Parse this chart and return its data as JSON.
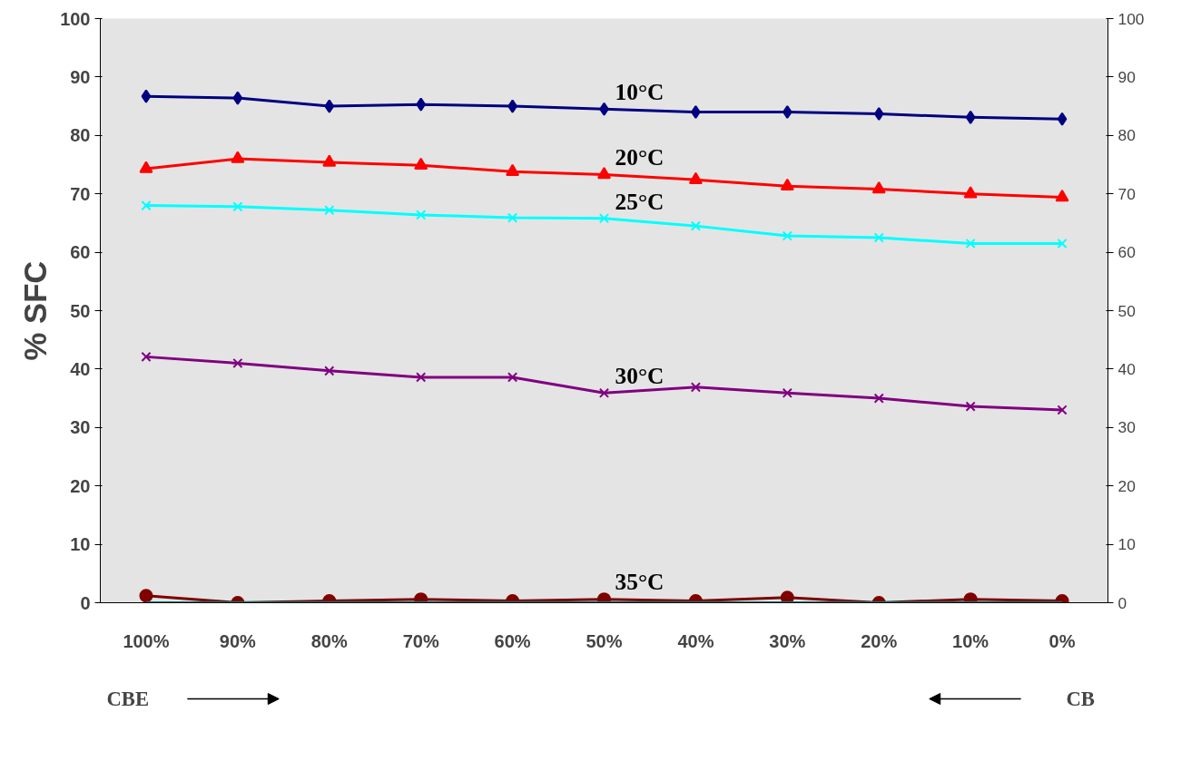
{
  "chart_data": {
    "type": "line",
    "ylabel": "% SFC",
    "categories": [
      "100%",
      "90%",
      "80%",
      "70%",
      "60%",
      "50%",
      "40%",
      "30%",
      "20%",
      "10%",
      "0%"
    ],
    "series": [
      {
        "name": "10°C",
        "color": "#000080",
        "marker": "diamond",
        "values": [
          86.7,
          86.4,
          85,
          85.3,
          85,
          84.5,
          84,
          84,
          83.7,
          83.1,
          82.8
        ]
      },
      {
        "name": "20°C",
        "color": "#ff0000",
        "marker": "triangle",
        "values": [
          74.3,
          76,
          75.4,
          74.9,
          73.8,
          73.3,
          72.4,
          71.3,
          70.8,
          70,
          69.4
        ]
      },
      {
        "name": "25°C",
        "color": "#00ffff",
        "marker": "cross",
        "values": [
          68,
          67.8,
          67.2,
          66.4,
          65.9,
          65.8,
          64.5,
          62.8,
          62.5,
          61.5,
          61.5
        ]
      },
      {
        "name": "30°C",
        "color": "#800080",
        "marker": "cross",
        "values": [
          42.1,
          41,
          39.7,
          38.6,
          38.6,
          35.9,
          36.9,
          35.9,
          35,
          33.6,
          33
        ]
      },
      {
        "name": "35°C",
        "color": "#800000",
        "marker": "circle",
        "values": [
          1.2,
          0,
          0.3,
          0.6,
          0.3,
          0.6,
          0.3,
          0.9,
          0,
          0.6,
          0.3
        ]
      },
      {
        "color": "#008080",
        "marker": "none",
        "values": [
          0,
          0,
          0,
          0,
          0,
          0,
          0,
          0,
          0,
          0,
          0
        ]
      }
    ],
    "ylim": [
      0,
      100
    ],
    "yticks": [
      0,
      10,
      20,
      30,
      40,
      50,
      60,
      70,
      80,
      90,
      100
    ],
    "y2lim": [
      0,
      100
    ],
    "y2ticks": [
      0,
      10,
      20,
      30,
      40,
      50,
      60,
      70,
      80,
      90,
      100
    ],
    "annotations": [
      "CBE",
      "CB"
    ]
  }
}
